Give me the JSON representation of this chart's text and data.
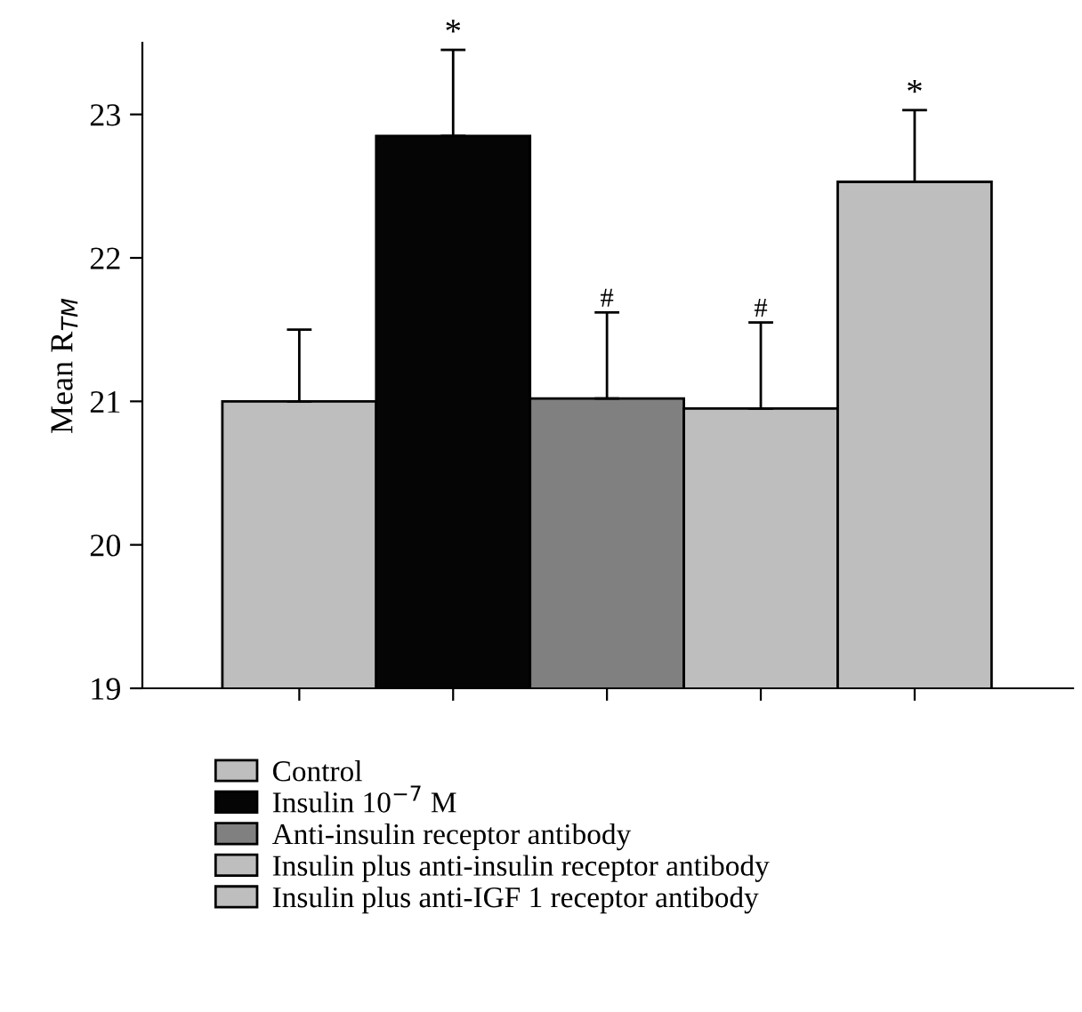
{
  "chart_data": {
    "type": "bar",
    "ylabel": "Mean R$_{TM}$",
    "categories": [
      null,
      null,
      null,
      null,
      null
    ],
    "series": [
      {
        "name": "Control",
        "color": "#bebebe",
        "values": [
          21.0,
          null,
          null,
          null,
          null
        ],
        "errors": [
          0.5,
          null,
          null,
          null,
          null
        ]
      },
      {
        "name": "Insulin 10$^{−7}$ M",
        "color": "#050505",
        "values": [
          null,
          22.85,
          null,
          null,
          null
        ],
        "errors": [
          null,
          0.6,
          null,
          null,
          null
        ]
      },
      {
        "name": "Anti-insulin receptor antibody",
        "color": "#808080",
        "values": [
          null,
          null,
          21.02,
          null,
          null
        ],
        "errors": [
          null,
          null,
          0.6,
          null,
          null
        ]
      },
      {
        "name": "Insulin plus anti-insulin receptor antibody",
        "color": "#bebebe",
        "values": [
          null,
          null,
          null,
          20.95,
          null
        ],
        "errors": [
          null,
          null,
          null,
          0.6,
          null
        ]
      },
      {
        "name": "Insulin plus anti-IGF 1 receptor antibody",
        "color": "#bebebe",
        "values": [
          null,
          null,
          null,
          null,
          22.53
        ],
        "errors": [
          null,
          null,
          null,
          null,
          0.5
        ]
      }
    ],
    "annotations": [
      {
        "text": "*",
        "y": 23.45
      },
      {
        "text": "#",
        "y": 21.62
      },
      {
        "text": "#",
        "y": 21.55
      },
      {
        "text": "*",
        "y": 23.03
      }
    ],
    "ylim": [
      19,
      23.5
    ],
    "yticks": [
      19,
      20,
      21,
      22,
      23
    ],
    "grid": false,
    "legend": "bottom"
  }
}
